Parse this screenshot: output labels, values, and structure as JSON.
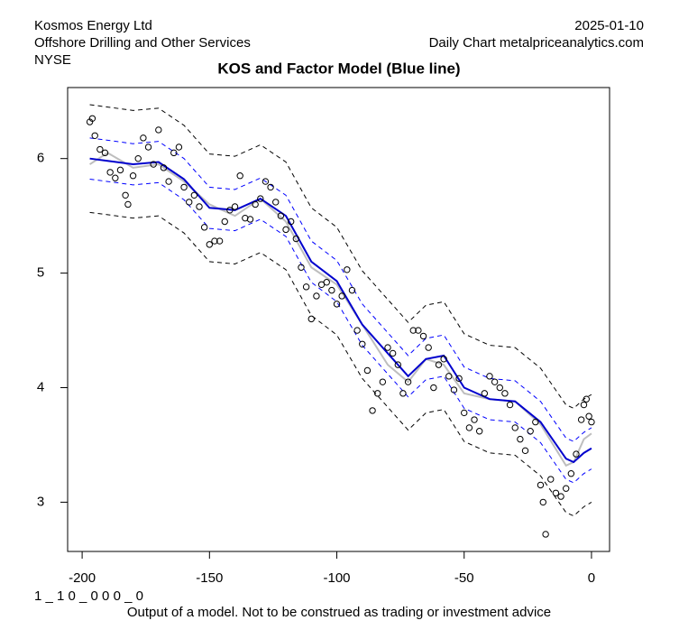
{
  "header": {
    "company": "Kosmos Energy Ltd",
    "sector": "Offshore Drilling and Other Services",
    "exchange": "NYSE",
    "date": "2025-01-10",
    "source": "Daily Chart metalpriceanalytics.com"
  },
  "footer": {
    "code": "1 _ 1 0 _ 0 0 0 _ 0",
    "note": "Output of a model. Not to be construed as trading or investment advice"
  },
  "chart_data": {
    "type": "scatter",
    "title": "KOS and Factor Model (Blue line)",
    "xlim": [
      -205.7,
      7.1
    ],
    "ylim": [
      2.57,
      6.62
    ],
    "xticks": [
      -200,
      -150,
      -100,
      -50,
      0
    ],
    "yticks": [
      3,
      4,
      5,
      6
    ],
    "points": {
      "color": "#000000",
      "x": [
        -197,
        -196,
        -195,
        -193,
        -191,
        -189,
        -187,
        -185,
        -183,
        -182,
        -180,
        -178,
        -176,
        -174,
        -172,
        -170,
        -168,
        -166,
        -164,
        -162,
        -160,
        -158,
        -156,
        -154,
        -152,
        -150,
        -148,
        -146,
        -144,
        -142,
        -140,
        -138,
        -136,
        -134,
        -132,
        -130,
        -128,
        -126,
        -124,
        -122,
        -120,
        -118,
        -116,
        -114,
        -112,
        -110,
        -108,
        -106,
        -104,
        -102,
        -100,
        -98,
        -96,
        -94,
        -92,
        -90,
        -88,
        -86,
        -84,
        -82,
        -80,
        -78,
        -76,
        -74,
        -72,
        -70,
        -68,
        -66,
        -64,
        -62,
        -60,
        -58,
        -56,
        -54,
        -52,
        -50,
        -48,
        -46,
        -44,
        -42,
        -40,
        -38,
        -36,
        -34,
        -32,
        -30,
        -28,
        -26,
        -24,
        -22,
        -20,
        -19,
        -18,
        -16,
        -14,
        -12,
        -10,
        -8,
        -6,
        -4,
        -3,
        -2,
        -1,
        0
      ],
      "values": [
        6.32,
        6.35,
        6.2,
        6.08,
        6.05,
        5.88,
        5.83,
        5.9,
        5.68,
        5.6,
        5.85,
        6.0,
        6.18,
        6.1,
        5.95,
        6.25,
        5.92,
        5.8,
        6.05,
        6.1,
        5.75,
        5.62,
        5.68,
        5.58,
        5.4,
        5.25,
        5.28,
        5.28,
        5.45,
        5.55,
        5.58,
        5.85,
        5.48,
        5.47,
        5.6,
        5.65,
        5.8,
        5.75,
        5.62,
        5.5,
        5.38,
        5.45,
        5.3,
        5.05,
        4.88,
        4.6,
        4.8,
        4.9,
        4.92,
        4.85,
        4.73,
        4.8,
        5.03,
        4.85,
        4.5,
        4.38,
        4.15,
        3.8,
        3.95,
        4.05,
        4.35,
        4.3,
        4.2,
        3.95,
        4.05,
        4.5,
        4.5,
        4.45,
        4.35,
        4.0,
        4.2,
        4.25,
        4.1,
        3.98,
        4.08,
        3.78,
        3.65,
        3.72,
        3.62,
        3.95,
        4.1,
        4.05,
        4.0,
        3.95,
        3.85,
        3.65,
        3.55,
        3.45,
        3.62,
        3.7,
        3.15,
        3.0,
        2.72,
        3.2,
        3.08,
        3.05,
        3.12,
        3.25,
        3.42,
        3.72,
        3.85,
        3.9,
        3.75,
        3.7
      ]
    },
    "x": [
      -197,
      -190,
      -180,
      -170,
      -160,
      -150,
      -140,
      -130,
      -120,
      -110,
      -100,
      -90,
      -80,
      -72,
      -65,
      -58,
      -50,
      -40,
      -30,
      -20,
      -10,
      -7,
      -3,
      0
    ],
    "series": [
      {
        "color": "#000000",
        "dashed": true,
        "width": 1,
        "values": [
          6.47,
          6.45,
          6.42,
          6.44,
          6.29,
          6.04,
          6.02,
          6.12,
          5.97,
          5.57,
          5.4,
          5.02,
          4.77,
          4.57,
          4.72,
          4.75,
          4.47,
          4.37,
          4.35,
          4.17,
          3.85,
          3.82,
          3.9,
          3.94
        ]
      },
      {
        "color": "#000000",
        "dashed": true,
        "width": 1,
        "values": [
          5.53,
          5.51,
          5.48,
          5.5,
          5.35,
          5.1,
          5.08,
          5.18,
          5.03,
          4.63,
          4.46,
          4.08,
          3.83,
          3.63,
          3.78,
          3.81,
          3.53,
          3.43,
          3.41,
          3.23,
          2.91,
          2.88,
          2.96,
          3.0
        ]
      },
      {
        "color": "#0000ff",
        "dashed": true,
        "width": 1,
        "values": [
          6.18,
          6.16,
          6.13,
          6.15,
          6.0,
          5.75,
          5.73,
          5.83,
          5.68,
          5.28,
          5.11,
          4.73,
          4.48,
          4.28,
          4.43,
          4.46,
          4.18,
          4.08,
          4.06,
          3.88,
          3.56,
          3.53,
          3.61,
          3.65
        ]
      },
      {
        "color": "#0000ff",
        "dashed": true,
        "width": 1,
        "values": [
          5.82,
          5.8,
          5.77,
          5.79,
          5.64,
          5.39,
          5.37,
          5.47,
          5.32,
          4.92,
          4.75,
          4.37,
          4.12,
          3.92,
          4.07,
          4.1,
          3.82,
          3.72,
          3.7,
          3.52,
          3.2,
          3.17,
          3.25,
          3.29
        ]
      },
      {
        "color": "#bebebe",
        "dashed": false,
        "width": 2,
        "values": [
          5.95,
          6.05,
          5.92,
          5.95,
          5.8,
          5.6,
          5.5,
          5.65,
          5.45,
          5.05,
          4.9,
          4.55,
          4.2,
          4.05,
          4.25,
          4.2,
          3.95,
          3.9,
          3.88,
          3.68,
          3.32,
          3.35,
          3.55,
          3.6
        ]
      },
      {
        "color": "#0000cd",
        "dashed": false,
        "width": 2,
        "values": [
          6.0,
          5.98,
          5.95,
          5.97,
          5.82,
          5.57,
          5.55,
          5.65,
          5.5,
          5.1,
          4.93,
          4.55,
          4.3,
          4.1,
          4.25,
          4.28,
          4.0,
          3.9,
          3.88,
          3.7,
          3.38,
          3.35,
          3.43,
          3.47
        ]
      }
    ]
  }
}
